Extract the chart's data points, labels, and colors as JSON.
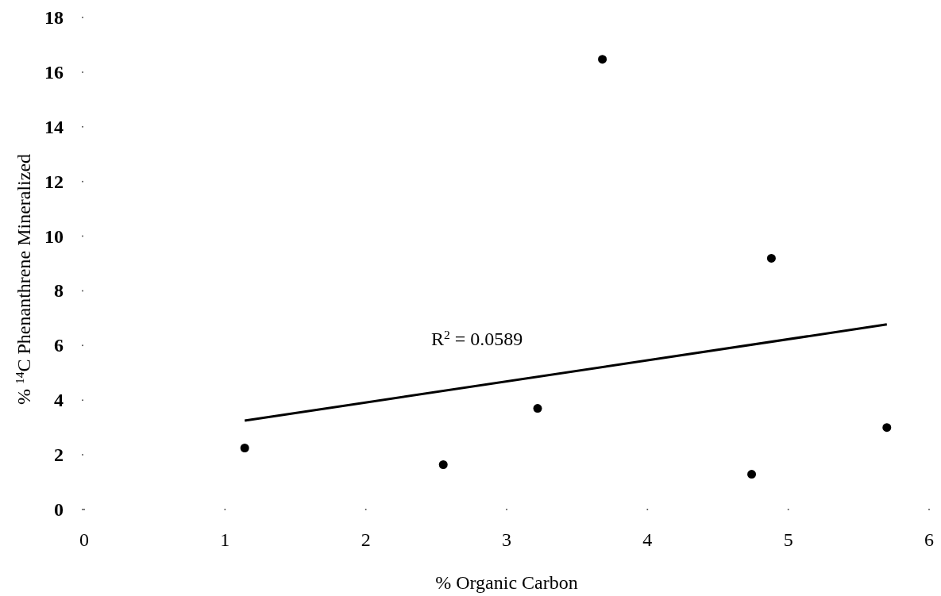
{
  "chart_data": {
    "type": "scatter",
    "xlabel": "% Organic Carbon",
    "ylabel": "% $^{14}$C Phenanthrene Mineralized",
    "xlim": [
      0,
      6
    ],
    "xticks": [
      0,
      1,
      2,
      3,
      4,
      5,
      6
    ],
    "ylim": [
      0,
      18
    ],
    "yticks": [
      0,
      2,
      4,
      6,
      8,
      10,
      12,
      14,
      16,
      18
    ],
    "grid": false,
    "marker": "circle",
    "series": [
      {
        "color": "#000000",
        "x": [
          1.14,
          2.55,
          3.22,
          3.68,
          4.74,
          4.88,
          5.7
        ],
        "values": [
          2.25,
          1.64,
          3.7,
          16.47,
          1.29,
          9.19,
          3.0
        ]
      },
      {
        "type": "line",
        "marker": "none",
        "color": "#000000",
        "x": [
          1.14,
          5.7
        ],
        "values": [
          3.25,
          6.77
        ]
      }
    ],
    "annotations": [
      "R$^{2}$ = 0.0589"
    ]
  }
}
